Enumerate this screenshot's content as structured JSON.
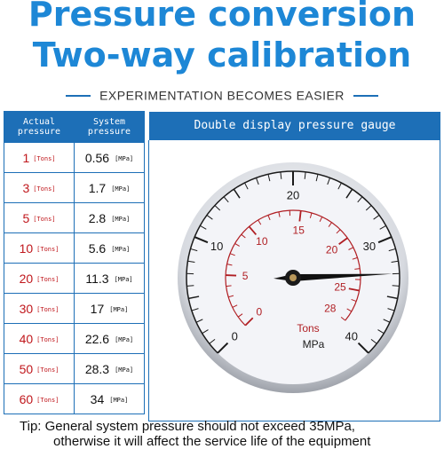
{
  "title_line1": "Pressure conversion",
  "title_line2": "Two-way calibration",
  "subtitle": "EXPERIMENTATION BECOMES EASIER",
  "table": {
    "col1": "Actual pressure",
    "col2": "System pressure",
    "gauge_header": "Double display pressure gauge",
    "unit_actual": "[Tons]",
    "unit_system": "[MPa]",
    "rows": [
      {
        "actual": "1",
        "system": "0.56"
      },
      {
        "actual": "3",
        "system": "1.7"
      },
      {
        "actual": "5",
        "system": "2.8"
      },
      {
        "actual": "10",
        "system": "5.6"
      },
      {
        "actual": "20",
        "system": "11.3"
      },
      {
        "actual": "30",
        "system": "17"
      },
      {
        "actual": "40",
        "system": "22.6"
      },
      {
        "actual": "50",
        "system": "28.3"
      },
      {
        "actual": "60",
        "system": "34"
      }
    ]
  },
  "gauge": {
    "mpa_label": "MPa",
    "tons_label": "Tons",
    "mpa_ticks": [
      "0",
      "10",
      "20",
      "30",
      "40"
    ],
    "tons_ticks": [
      "0",
      "5",
      "10",
      "15",
      "20",
      "25",
      "28"
    ],
    "needle_mpa": 33,
    "colors": {
      "mpa": "#1a1a1a",
      "tons": "#b01e23",
      "dial": "#f3f4f8"
    }
  },
  "tip_line1": "Tip: General system pressure should not exceed 35MPa,",
  "tip_line2": "otherwise it will affect the service life of the equipment"
}
